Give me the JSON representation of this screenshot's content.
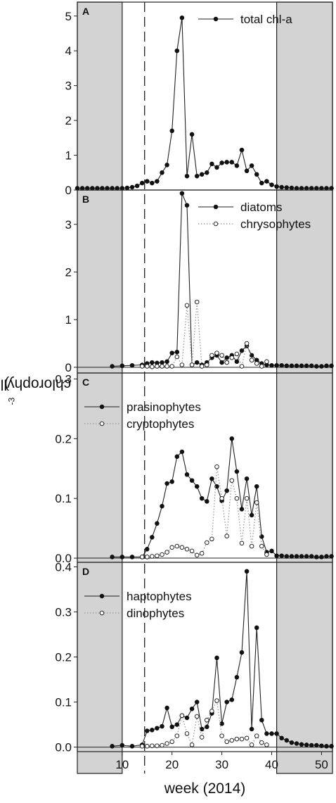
{
  "figure": {
    "ylabel_main": "chlorophyll a (mg m",
    "ylabel_sup": "-3",
    "ylabel_close": ")",
    "xlabel": "week (2014)",
    "x_ticks": [
      10,
      20,
      30,
      40,
      50
    ],
    "shaded_weeks": [
      [
        1,
        10
      ],
      [
        41,
        52
      ]
    ],
    "dashed_line_week": 14.5,
    "colors": {
      "shade": "#d3d3d3",
      "line": "#222222",
      "dotted": "#999999"
    }
  },
  "chart_data": [
    {
      "type": "line",
      "panel": "A",
      "ylim": [
        0,
        5.4
      ],
      "yticks": [
        0,
        1,
        2,
        3,
        4,
        5
      ],
      "ytick_labels": [
        "0",
        "1",
        "2",
        "3",
        "4",
        "5"
      ],
      "legend_position": "top-right",
      "series": [
        {
          "name": "total chl-a",
          "style": "filled",
          "x": [
            1,
            2,
            3,
            4,
            5,
            6,
            7,
            8,
            9,
            10,
            11,
            12,
            13,
            14,
            15,
            16,
            17,
            18,
            19,
            20,
            21,
            22,
            23,
            24,
            25,
            26,
            27,
            28,
            29,
            30,
            31,
            32,
            33,
            34,
            35,
            36,
            37,
            38,
            39,
            40,
            41,
            42,
            43,
            44,
            45,
            46,
            47,
            48,
            49,
            50,
            51,
            52
          ],
          "y": [
            0.05,
            0.05,
            0.05,
            0.05,
            0.05,
            0.05,
            0.05,
            0.05,
            0.05,
            0.05,
            0.06,
            0.08,
            0.12,
            0.2,
            0.25,
            0.2,
            0.25,
            0.5,
            0.72,
            1.7,
            4.0,
            4.95,
            0.4,
            1.6,
            0.4,
            0.45,
            0.5,
            0.75,
            0.65,
            0.78,
            0.8,
            0.8,
            0.7,
            1.15,
            0.55,
            0.7,
            0.45,
            0.2,
            0.25,
            0.15,
            0.1,
            0.08,
            0.07,
            0.06,
            0.05,
            0.05,
            0.05,
            0.05,
            0.05,
            0.05,
            0.05,
            0.05
          ]
        }
      ]
    },
    {
      "type": "line",
      "panel": "B",
      "ylim": [
        -0.12,
        3.72
      ],
      "yticks": [
        0,
        1,
        2,
        3
      ],
      "ytick_labels": [
        "0",
        "1",
        "2",
        "3"
      ],
      "legend_position": "top-right",
      "series": [
        {
          "name": "diatoms",
          "style": "filled",
          "x": [
            8,
            10,
            12,
            14,
            15,
            16,
            17,
            18,
            19,
            20,
            21,
            22,
            23,
            24,
            25,
            26,
            27,
            28,
            29,
            30,
            31,
            32,
            33,
            34,
            35,
            36,
            37,
            38,
            39,
            40,
            41,
            42,
            43,
            44,
            45,
            46,
            47,
            48,
            49,
            50,
            51,
            52
          ],
          "y": [
            0.02,
            0.03,
            0.04,
            0.05,
            0.08,
            0.1,
            0.09,
            0.1,
            0.12,
            0.3,
            0.32,
            3.65,
            3.4,
            0.05,
            0.1,
            0.05,
            0.1,
            0.2,
            0.25,
            0.1,
            0.2,
            0.25,
            0.12,
            0.35,
            0.45,
            0.25,
            0.15,
            0.08,
            0.05,
            0.04,
            0.04,
            0.04,
            0.03,
            0.03,
            0.03,
            0.03,
            0.03,
            0.03,
            0.02,
            0.02,
            0.03,
            0.03
          ]
        },
        {
          "name": "chrysophytes",
          "style": "open",
          "x": [
            14,
            15,
            16,
            17,
            18,
            19,
            20,
            21,
            22,
            23,
            24,
            25,
            26,
            27,
            28,
            29,
            30,
            31,
            32,
            33,
            34,
            35,
            36,
            37,
            38,
            39
          ],
          "y": [
            0.02,
            0.02,
            0.01,
            0.02,
            0.02,
            0.02,
            0.02,
            0.22,
            0.05,
            1.3,
            0.05,
            1.37,
            0.02,
            0.05,
            0.25,
            0.3,
            0.25,
            0.1,
            0.2,
            0.28,
            0.02,
            0.5,
            0.15,
            0.08,
            0.02,
            0.12
          ]
        }
      ]
    },
    {
      "type": "line",
      "panel": "C",
      "ylim": [
        -0.007,
        0.31
      ],
      "yticks": [
        0,
        0.1,
        0.2,
        0.3
      ],
      "ytick_labels": [
        "0.0",
        "0.1",
        "0.2",
        "0.3"
      ],
      "legend_position": "top-left",
      "series": [
        {
          "name": "prasinophytes",
          "style": "filled",
          "x": [
            8,
            10,
            12,
            14,
            15,
            16,
            17,
            18,
            19,
            20,
            21,
            22,
            23,
            24,
            25,
            26,
            27,
            28,
            29,
            30,
            31,
            32,
            33,
            34,
            35,
            36,
            37,
            38,
            39,
            40,
            41,
            42,
            43,
            44,
            45,
            46,
            47,
            48,
            49,
            50,
            51,
            52
          ],
          "y": [
            0.002,
            0.002,
            0.002,
            0.002,
            0.015,
            0.035,
            0.058,
            0.087,
            0.125,
            0.128,
            0.17,
            0.178,
            0.14,
            0.13,
            0.12,
            0.1,
            0.095,
            0.133,
            0.12,
            0.096,
            0.113,
            0.2,
            0.145,
            0.082,
            0.133,
            0.072,
            0.12,
            0.036,
            0.01,
            0.012,
            0.004,
            0.004,
            0.003,
            0.003,
            0.003,
            0.003,
            0.003,
            0.003,
            0.002,
            0.002,
            0.003,
            0.003
          ]
        },
        {
          "name": "cryptophytes",
          "style": "open",
          "x": [
            14,
            15,
            16,
            17,
            18,
            19,
            20,
            21,
            22,
            23,
            24,
            25,
            26,
            27,
            28,
            29,
            30,
            31,
            32,
            33,
            34,
            35,
            36,
            37,
            38,
            39
          ],
          "y": [
            0.002,
            0.002,
            0.003,
            0.004,
            0.006,
            0.01,
            0.018,
            0.02,
            0.018,
            0.015,
            0.012,
            0.005,
            0.008,
            0.026,
            0.032,
            0.153,
            0.1,
            0.037,
            0.13,
            0.1,
            0.025,
            0.1,
            0.02,
            0.093,
            0.02,
            0.006
          ]
        }
      ]
    },
    {
      "type": "line",
      "panel": "D",
      "ylim": [
        -0.01,
        0.41
      ],
      "yticks": [
        0,
        0.1,
        0.2,
        0.3,
        0.4
      ],
      "ytick_labels": [
        "0.0",
        "0.1",
        "0.2",
        "0.3",
        "0.4"
      ],
      "legend_position": "top-left",
      "series": [
        {
          "name": "haptophytes",
          "style": "filled",
          "x": [
            8,
            10,
            12,
            14,
            15,
            16,
            17,
            18,
            19,
            20,
            21,
            22,
            23,
            24,
            25,
            26,
            27,
            28,
            29,
            30,
            31,
            32,
            33,
            34,
            35,
            36,
            37,
            38,
            39,
            40,
            41,
            42,
            43,
            44,
            45,
            46,
            47,
            48,
            49,
            50,
            51,
            52
          ],
          "y": [
            0.002,
            0.004,
            0.002,
            0.005,
            0.036,
            0.038,
            0.042,
            0.046,
            0.087,
            0.045,
            0.05,
            0.07,
            0.065,
            0.085,
            0.1,
            0.04,
            0.045,
            0.075,
            0.198,
            0.052,
            0.1,
            0.105,
            0.155,
            0.21,
            0.39,
            0.04,
            0.265,
            0.06,
            0.03,
            0.03,
            0.03,
            0.02,
            0.015,
            0.01,
            0.008,
            0.006,
            0.005,
            0.004,
            0.004,
            0.003,
            0.002,
            0.002
          ]
        },
        {
          "name": "dinophytes",
          "style": "open",
          "x": [
            14,
            15,
            16,
            17,
            18,
            19,
            20,
            21,
            22,
            23,
            24,
            25,
            26,
            27,
            28,
            29,
            30,
            31,
            32,
            33,
            34,
            35,
            36,
            37,
            38,
            39
          ],
          "y": [
            0.002,
            0.002,
            0.003,
            0.003,
            0.004,
            0.008,
            0.012,
            0.025,
            0.07,
            0.03,
            0.005,
            0.068,
            0.022,
            0.06,
            0.08,
            0.103,
            0.025,
            0.012,
            0.015,
            0.018,
            0.018,
            0.02,
            0.005,
            0.025,
            0.01,
            0.005
          ]
        }
      ]
    }
  ]
}
